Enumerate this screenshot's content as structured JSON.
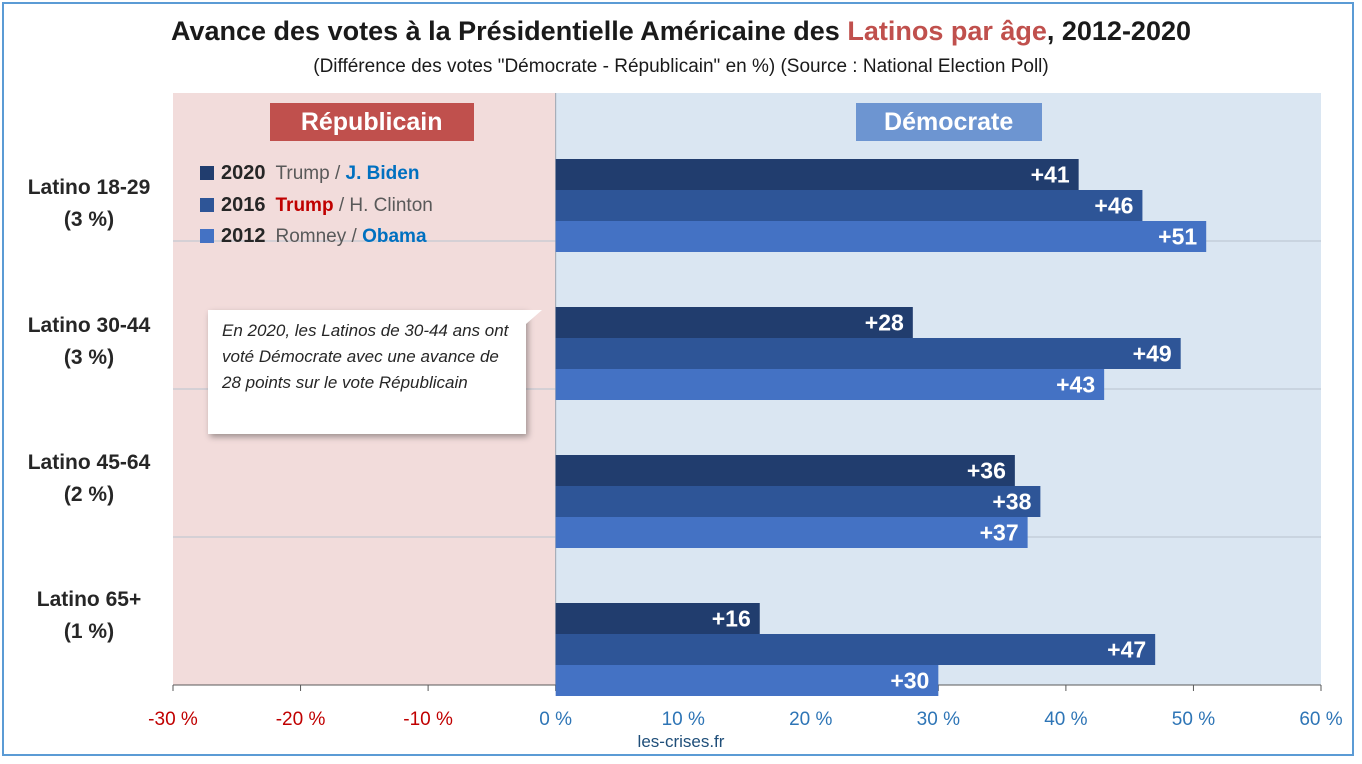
{
  "chart_data": {
    "type": "bar",
    "orientation": "horizontal",
    "title": {
      "prefix": "Avance des votes à la Présidentielle Américaine des ",
      "highlight": "Latinos par âge",
      "suffix": ", 2012-2020"
    },
    "subtitle": "(Différence des votes \"Démocrate - Républicain\" en %) (Source : National Election Poll)",
    "categories": [
      {
        "name": "Latino 18-29",
        "share": "(3 %)"
      },
      {
        "name": "Latino 30-44",
        "share": "(3 %)"
      },
      {
        "name": "Latino 45-64",
        "share": "(2 %)"
      },
      {
        "name": "Latino 65+",
        "share": "(1 %)"
      }
    ],
    "series": [
      {
        "name": "2020",
        "color": "#213d6e",
        "values": [
          41,
          28,
          36,
          16
        ],
        "labels": [
          "+41",
          "+28",
          "+36",
          "+16"
        ]
      },
      {
        "name": "2016",
        "color": "#2e5597",
        "values": [
          46,
          49,
          38,
          47
        ],
        "labels": [
          "+46",
          "+49",
          "+38",
          "+47"
        ]
      },
      {
        "name": "2012",
        "color": "#4472c4",
        "values": [
          51,
          43,
          37,
          30
        ],
        "labels": [
          "+51",
          "+43",
          "+37",
          "+30"
        ]
      }
    ],
    "xlim": [
      -30,
      60
    ],
    "xticks": [
      -30,
      -20,
      -10,
      0,
      10,
      20,
      30,
      40,
      50,
      60
    ],
    "xtick_labels": [
      "-30 %",
      "-20 %",
      "-10 %",
      "0 %",
      "10 %",
      "20 %",
      "30 %",
      "40 %",
      "50 %",
      "60 %"
    ],
    "negative_color": "#c00000",
    "positive_color": "#2e75b6",
    "rep_region_color": "#f2dcdb",
    "dem_region_color": "#dae6f2",
    "grid": "horizontal separators"
  },
  "regions": {
    "republicain": {
      "label": "Républicain",
      "color": "#c0504d"
    },
    "democrate": {
      "label": "Démocrate",
      "color": "#6d95d1"
    }
  },
  "legend": [
    {
      "year": "2020",
      "rep": "Trump",
      "sep": " / ",
      "dem": "J. Biden",
      "winner": "dem"
    },
    {
      "year": "2016",
      "rep": "Trump",
      "sep": " / ",
      "dem": "H. Clinton",
      "winner": "rep"
    },
    {
      "year": "2012",
      "rep": "Romney",
      "sep": " / ",
      "dem": "Obama",
      "winner": "dem"
    }
  ],
  "annotation": "En 2020, les Latinos de 30-44 ans ont voté Démocrate avec une avance de 28 points sur le vote Républicain",
  "source": "les-crises.fr"
}
